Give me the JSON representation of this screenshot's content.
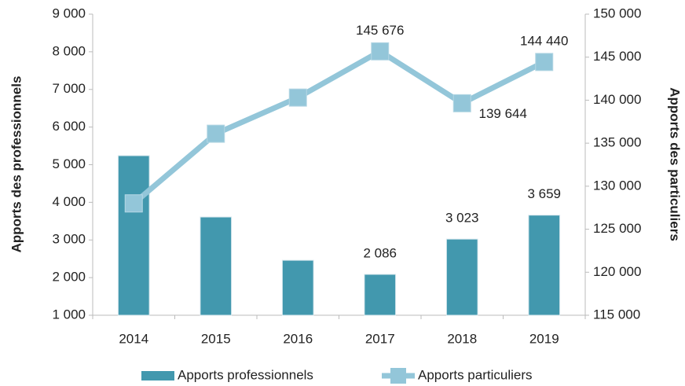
{
  "chart_data": {
    "type": "combo",
    "categories": [
      "2014",
      "2015",
      "2016",
      "2017",
      "2018",
      "2019"
    ],
    "ylabel": "Apports des professionnels",
    "y2label": "Apports des particuliers",
    "ylim": [
      1000,
      9000
    ],
    "yticks": [
      {
        "value": 1000,
        "label": "1 000"
      },
      {
        "value": 2000,
        "label": "2 000"
      },
      {
        "value": 3000,
        "label": "3 000"
      },
      {
        "value": 4000,
        "label": "4 000"
      },
      {
        "value": 5000,
        "label": "5 000"
      },
      {
        "value": 6000,
        "label": "6 000"
      },
      {
        "value": 7000,
        "label": "7 000"
      },
      {
        "value": 8000,
        "label": "8 000"
      },
      {
        "value": 9000,
        "label": "9 000"
      }
    ],
    "y2lim": [
      115000,
      150000
    ],
    "y2ticks": [
      {
        "value": 115000,
        "label": "115 000"
      },
      {
        "value": 120000,
        "label": "120 000"
      },
      {
        "value": 125000,
        "label": "125 000"
      },
      {
        "value": 130000,
        "label": "130 000"
      },
      {
        "value": 135000,
        "label": "135 000"
      },
      {
        "value": 140000,
        "label": "140 000"
      },
      {
        "value": 145000,
        "label": "145 000"
      },
      {
        "value": 150000,
        "label": "150 000"
      }
    ],
    "legend": "bottom",
    "series": [
      {
        "name": "Apports professionnels",
        "type": "bar",
        "color": "#4298ae",
        "values": [
          5240,
          3610,
          2460,
          2086,
          3023,
          3659
        ],
        "value_labels": [
          null,
          null,
          null,
          "2 086",
          "3 023",
          "3 659"
        ]
      },
      {
        "name": "Apports particuliers",
        "type": "line",
        "axis": "y2",
        "color": "#93c6d9",
        "values": [
          128000,
          136100,
          140300,
          145676,
          139644,
          144440
        ],
        "value_labels": [
          null,
          null,
          null,
          "145 676",
          "139 644",
          "144 440"
        ]
      }
    ]
  }
}
